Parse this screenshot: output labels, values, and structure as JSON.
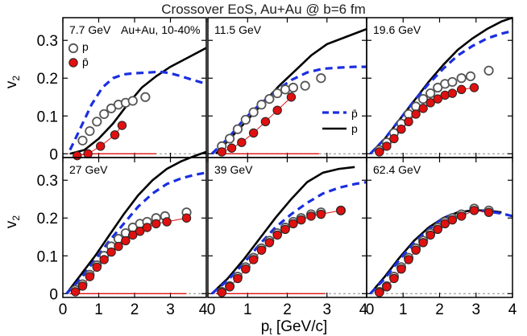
{
  "chart_data": {
    "type": "scatter",
    "title": "Crossover EoS, Au+Au @ b=6 fm",
    "xlabel_main": "p",
    "xlabel_sub": "t",
    "xlabel_rest": " [GeV/c]",
    "ylabel_main": "v",
    "ylabel_sub": "2",
    "xlim": [
      0,
      4
    ],
    "ylim": [
      -0.01,
      0.36
    ],
    "xticks": [
      "0",
      "1",
      "2",
      "3",
      "4"
    ],
    "yticks": [
      "0",
      "0.1",
      "0.2",
      "0.3"
    ],
    "grid": false,
    "colors": {
      "p_data_marker": "#555555",
      "pbar_data_marker": "#e01010",
      "pbar_model": "#1a2ee0",
      "p_model": "#000000",
      "zero_line": "#888888"
    },
    "legend_data": {
      "placement": "top-left of first panel",
      "entries": [
        {
          "symbol": "open-circle",
          "label": "p"
        },
        {
          "symbol": "red-filled-circle",
          "label": "p̄"
        }
      ],
      "system": "Au+Au, 10-40%"
    },
    "legend_model": {
      "placement": "right side of second panel",
      "entries": [
        {
          "style": "blue-dashed",
          "label": "p̄"
        },
        {
          "style": "black-solid",
          "label": "p"
        }
      ]
    },
    "panels": [
      {
        "energy": "7.7 GeV",
        "p_data": [
          [
            0.55,
            0.035
          ],
          [
            0.75,
            0.06
          ],
          [
            0.95,
            0.085
          ],
          [
            1.15,
            0.105
          ],
          [
            1.35,
            0.12
          ],
          [
            1.55,
            0.13
          ],
          [
            1.75,
            0.135
          ],
          [
            1.95,
            0.14
          ],
          [
            2.3,
            0.15
          ]
        ],
        "pbar_data": [
          [
            0.4,
            -0.005
          ],
          [
            0.7,
            0.0
          ],
          [
            1.05,
            0.02
          ],
          [
            1.45,
            0.05
          ],
          [
            1.65,
            0.075
          ]
        ],
        "pbar_model": [
          [
            0.2,
            0.01
          ],
          [
            0.5,
            0.07
          ],
          [
            0.8,
            0.13
          ],
          [
            1.1,
            0.175
          ],
          [
            1.4,
            0.2
          ],
          [
            1.7,
            0.21
          ],
          [
            2.0,
            0.213
          ],
          [
            2.4,
            0.215
          ],
          [
            2.7,
            0.217
          ],
          [
            3.0,
            0.213
          ],
          [
            3.3,
            0.205
          ],
          [
            3.6,
            0.196
          ],
          [
            4.0,
            0.185
          ]
        ],
        "p_model": [
          [
            0.2,
            0.0
          ],
          [
            0.6,
            0.01
          ],
          [
            1.0,
            0.04
          ],
          [
            1.4,
            0.08
          ],
          [
            1.8,
            0.13
          ],
          [
            2.2,
            0.175
          ],
          [
            2.6,
            0.205
          ],
          [
            3.0,
            0.23
          ],
          [
            3.5,
            0.255
          ],
          [
            4.0,
            0.28
          ]
        ],
        "pbar_hline": [
          0.6,
          2.6
        ]
      },
      {
        "energy": "11.5 GeV",
        "p_data": [
          [
            0.35,
            0.02
          ],
          [
            0.55,
            0.04
          ],
          [
            0.75,
            0.065
          ],
          [
            0.95,
            0.09
          ],
          [
            1.15,
            0.11
          ],
          [
            1.35,
            0.13
          ],
          [
            1.55,
            0.145
          ],
          [
            1.75,
            0.16
          ],
          [
            1.95,
            0.17
          ],
          [
            2.15,
            0.175
          ],
          [
            2.45,
            0.18
          ],
          [
            2.85,
            0.2
          ]
        ],
        "pbar_data": [
          [
            0.35,
            0.005
          ],
          [
            0.6,
            0.015
          ],
          [
            0.85,
            0.03
          ],
          [
            1.15,
            0.055
          ],
          [
            1.45,
            0.085
          ],
          [
            1.75,
            0.115
          ],
          [
            2.1,
            0.15
          ]
        ],
        "pbar_model": [
          [
            0.1,
            0.0
          ],
          [
            0.5,
            0.04
          ],
          [
            0.9,
            0.09
          ],
          [
            1.3,
            0.13
          ],
          [
            1.7,
            0.165
          ],
          [
            2.1,
            0.195
          ],
          [
            2.5,
            0.215
          ],
          [
            2.9,
            0.225
          ],
          [
            3.3,
            0.228
          ],
          [
            3.7,
            0.23
          ],
          [
            4.0,
            0.23
          ]
        ],
        "p_model": [
          [
            0.2,
            0.0
          ],
          [
            0.6,
            0.045
          ],
          [
            1.0,
            0.09
          ],
          [
            1.4,
            0.135
          ],
          [
            1.8,
            0.18
          ],
          [
            2.2,
            0.22
          ],
          [
            2.6,
            0.26
          ],
          [
            3.0,
            0.29
          ],
          [
            3.5,
            0.31
          ],
          [
            4.0,
            0.33
          ]
        ],
        "pbar_hline": [
          0.3,
          2.8
        ]
      },
      {
        "energy": "19.6 GeV",
        "p_data": [
          [
            0.35,
            0.01
          ],
          [
            0.55,
            0.03
          ],
          [
            0.75,
            0.055
          ],
          [
            0.95,
            0.08
          ],
          [
            1.15,
            0.105
          ],
          [
            1.35,
            0.125
          ],
          [
            1.55,
            0.145
          ],
          [
            1.75,
            0.16
          ],
          [
            1.95,
            0.175
          ],
          [
            2.15,
            0.185
          ],
          [
            2.35,
            0.19
          ],
          [
            2.6,
            0.2
          ],
          [
            2.85,
            0.205
          ],
          [
            3.35,
            0.22
          ]
        ],
        "pbar_data": [
          [
            0.35,
            0.005
          ],
          [
            0.55,
            0.02
          ],
          [
            0.75,
            0.04
          ],
          [
            0.95,
            0.065
          ],
          [
            1.15,
            0.085
          ],
          [
            1.35,
            0.105
          ],
          [
            1.55,
            0.12
          ],
          [
            1.75,
            0.135
          ],
          [
            1.95,
            0.145
          ],
          [
            2.15,
            0.155
          ],
          [
            2.35,
            0.16
          ],
          [
            2.6,
            0.17
          ],
          [
            2.95,
            0.175
          ]
        ],
        "pbar_model": [
          [
            0.1,
            0.0
          ],
          [
            0.5,
            0.04
          ],
          [
            0.9,
            0.09
          ],
          [
            1.3,
            0.14
          ],
          [
            1.7,
            0.185
          ],
          [
            2.1,
            0.225
          ],
          [
            2.5,
            0.26
          ],
          [
            2.9,
            0.285
          ],
          [
            3.3,
            0.305
          ],
          [
            3.7,
            0.318
          ],
          [
            4.0,
            0.325
          ]
        ],
        "p_model": [
          [
            0.1,
            0.0
          ],
          [
            0.5,
            0.04
          ],
          [
            0.9,
            0.09
          ],
          [
            1.3,
            0.14
          ],
          [
            1.7,
            0.19
          ],
          [
            2.1,
            0.235
          ],
          [
            2.5,
            0.275
          ],
          [
            2.9,
            0.305
          ],
          [
            3.3,
            0.33
          ],
          [
            3.7,
            0.35
          ],
          [
            4.0,
            0.36
          ]
        ],
        "pbar_hline": null
      },
      {
        "energy": "27 GeV",
        "p_data": [
          [
            0.35,
            0.01
          ],
          [
            0.55,
            0.025
          ],
          [
            0.75,
            0.05
          ],
          [
            0.95,
            0.075
          ],
          [
            1.15,
            0.1
          ],
          [
            1.35,
            0.125
          ],
          [
            1.55,
            0.145
          ],
          [
            1.75,
            0.16
          ],
          [
            1.95,
            0.175
          ],
          [
            2.15,
            0.185
          ],
          [
            2.35,
            0.19
          ],
          [
            2.6,
            0.2
          ],
          [
            2.85,
            0.205
          ],
          [
            3.45,
            0.215
          ]
        ],
        "pbar_data": [
          [
            0.35,
            0.005
          ],
          [
            0.55,
            0.02
          ],
          [
            0.75,
            0.045
          ],
          [
            0.95,
            0.07
          ],
          [
            1.15,
            0.09
          ],
          [
            1.35,
            0.11
          ],
          [
            1.55,
            0.125
          ],
          [
            1.75,
            0.14
          ],
          [
            1.95,
            0.155
          ],
          [
            2.15,
            0.165
          ],
          [
            2.35,
            0.175
          ],
          [
            2.6,
            0.185
          ],
          [
            2.9,
            0.19
          ],
          [
            3.45,
            0.2
          ]
        ],
        "pbar_model": [
          [
            0.1,
            0.0
          ],
          [
            0.5,
            0.04
          ],
          [
            0.9,
            0.09
          ],
          [
            1.3,
            0.14
          ],
          [
            1.7,
            0.185
          ],
          [
            2.1,
            0.23
          ],
          [
            2.5,
            0.265
          ],
          [
            2.9,
            0.29
          ],
          [
            3.3,
            0.305
          ],
          [
            3.7,
            0.315
          ],
          [
            4.0,
            0.32
          ]
        ],
        "p_model": [
          [
            0.1,
            0.0
          ],
          [
            0.5,
            0.05
          ],
          [
            0.9,
            0.1
          ],
          [
            1.3,
            0.155
          ],
          [
            1.7,
            0.21
          ],
          [
            2.1,
            0.26
          ],
          [
            2.5,
            0.3
          ],
          [
            2.9,
            0.33
          ],
          [
            3.3,
            0.35
          ],
          [
            3.7,
            0.365
          ],
          [
            4.0,
            0.375
          ]
        ],
        "pbar_hline": [
          0.2,
          3.45
        ]
      },
      {
        "energy": "39 GeV",
        "p_data": [
          [
            0.35,
            0.005
          ],
          [
            0.55,
            0.02
          ],
          [
            0.75,
            0.045
          ],
          [
            0.95,
            0.07
          ],
          [
            1.15,
            0.095
          ],
          [
            1.35,
            0.12
          ],
          [
            1.55,
            0.14
          ],
          [
            1.75,
            0.16
          ],
          [
            1.95,
            0.175
          ],
          [
            2.15,
            0.19
          ],
          [
            2.35,
            0.2
          ],
          [
            2.6,
            0.21
          ],
          [
            2.85,
            0.215
          ],
          [
            3.35,
            0.22
          ]
        ],
        "pbar_data": [
          [
            0.35,
            0.003
          ],
          [
            0.55,
            0.018
          ],
          [
            0.75,
            0.04
          ],
          [
            0.95,
            0.065
          ],
          [
            1.15,
            0.09
          ],
          [
            1.35,
            0.115
          ],
          [
            1.55,
            0.135
          ],
          [
            1.75,
            0.155
          ],
          [
            1.95,
            0.17
          ],
          [
            2.15,
            0.185
          ],
          [
            2.35,
            0.195
          ],
          [
            2.6,
            0.205
          ],
          [
            2.85,
            0.21
          ],
          [
            3.35,
            0.22
          ]
        ],
        "pbar_model": [
          [
            0.1,
            0.0
          ],
          [
            0.5,
            0.035
          ],
          [
            0.9,
            0.08
          ],
          [
            1.3,
            0.13
          ],
          [
            1.7,
            0.175
          ],
          [
            2.1,
            0.21
          ],
          [
            2.5,
            0.24
          ],
          [
            2.9,
            0.265
          ],
          [
            3.3,
            0.28
          ],
          [
            3.7,
            0.29
          ],
          [
            4.0,
            0.295
          ]
        ],
        "p_model": [
          [
            0.1,
            0.0
          ],
          [
            0.5,
            0.04
          ],
          [
            0.9,
            0.09
          ],
          [
            1.3,
            0.145
          ],
          [
            1.7,
            0.2
          ],
          [
            2.1,
            0.25
          ],
          [
            2.5,
            0.295
          ],
          [
            2.9,
            0.32
          ],
          [
            3.3,
            0.33
          ],
          [
            3.7,
            0.335
          ]
        ],
        "pbar_hline": [
          0.2,
          2.95
        ]
      },
      {
        "energy": "62.4 GeV",
        "p_data": [
          [
            0.35,
            0.005
          ],
          [
            0.55,
            0.02
          ],
          [
            0.75,
            0.045
          ],
          [
            0.95,
            0.07
          ],
          [
            1.15,
            0.095
          ],
          [
            1.35,
            0.12
          ],
          [
            1.55,
            0.14
          ],
          [
            1.75,
            0.16
          ],
          [
            1.95,
            0.175
          ],
          [
            2.15,
            0.19
          ],
          [
            2.35,
            0.2
          ],
          [
            2.6,
            0.21
          ],
          [
            2.95,
            0.225
          ],
          [
            3.35,
            0.22
          ]
        ],
        "pbar_data": [
          [
            0.35,
            0.003
          ],
          [
            0.55,
            0.018
          ],
          [
            0.75,
            0.04
          ],
          [
            0.95,
            0.065
          ],
          [
            1.15,
            0.09
          ],
          [
            1.35,
            0.115
          ],
          [
            1.55,
            0.135
          ],
          [
            1.75,
            0.155
          ],
          [
            1.95,
            0.17
          ],
          [
            2.15,
            0.185
          ],
          [
            2.35,
            0.195
          ],
          [
            2.6,
            0.205
          ],
          [
            2.95,
            0.22
          ],
          [
            3.35,
            0.215
          ]
        ],
        "pbar_model": [
          [
            0.1,
            0.0
          ],
          [
            0.5,
            0.04
          ],
          [
            0.9,
            0.09
          ],
          [
            1.3,
            0.135
          ],
          [
            1.7,
            0.17
          ],
          [
            2.1,
            0.2
          ],
          [
            2.5,
            0.215
          ],
          [
            2.9,
            0.22
          ],
          [
            3.3,
            0.218
          ],
          [
            3.7,
            0.212
          ],
          [
            4.0,
            0.205
          ]
        ],
        "p_model": [
          [
            0.1,
            0.0
          ],
          [
            0.5,
            0.045
          ],
          [
            0.9,
            0.095
          ],
          [
            1.3,
            0.14
          ],
          [
            1.7,
            0.175
          ],
          [
            2.1,
            0.2
          ],
          [
            2.5,
            0.215
          ],
          [
            2.9,
            0.22
          ],
          [
            3.3,
            0.22
          ],
          [
            3.7,
            0.215
          ]
        ],
        "pbar_hline": null
      }
    ]
  }
}
